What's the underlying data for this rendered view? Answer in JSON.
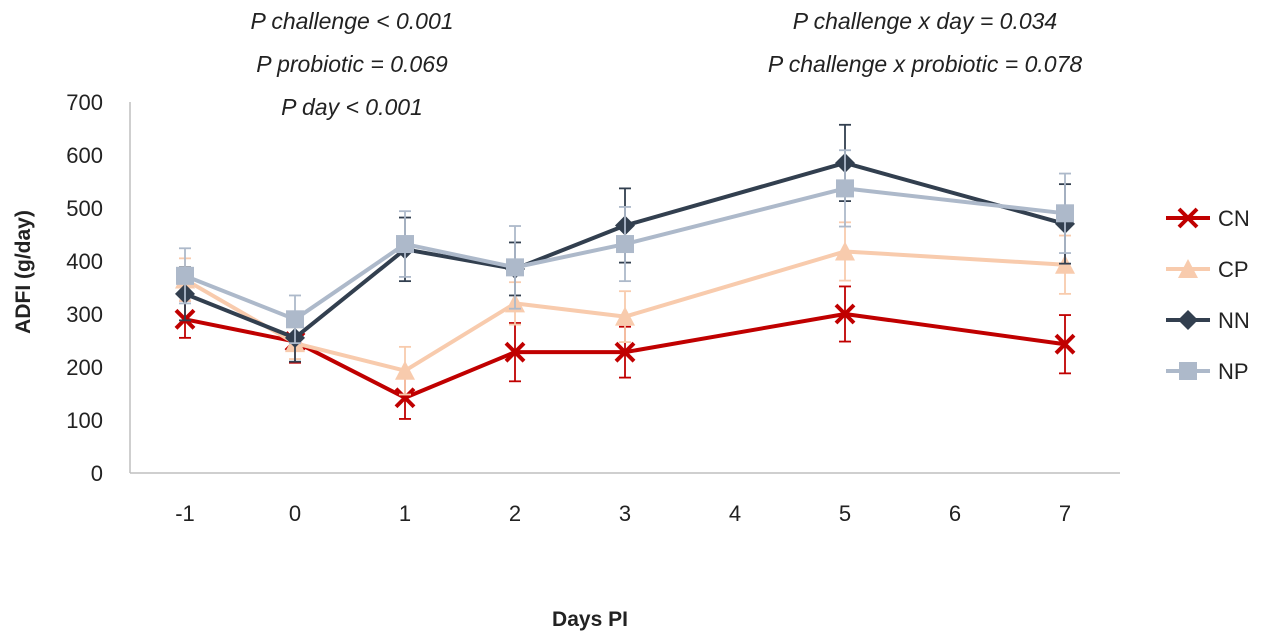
{
  "chart_data": {
    "type": "line",
    "title": "",
    "xlabel": "Days PI",
    "ylabel": "ADFI (g/day)",
    "ylim": [
      0,
      700
    ],
    "yticks": [
      0,
      100,
      200,
      300,
      400,
      500,
      600,
      700
    ],
    "xlim": [
      -1,
      7
    ],
    "xticks": [
      -1,
      0,
      1,
      2,
      3,
      4,
      5,
      6,
      7
    ],
    "x": [
      -1,
      0,
      1,
      2,
      3,
      5,
      7
    ],
    "grid": false,
    "legend_position": "right",
    "annotations_left": [
      "P challenge < 0.001",
      "P probiotic = 0.069",
      "P day < 0.001"
    ],
    "annotations_right": [
      "P challenge x day = 0.034",
      "P challenge x probiotic = 0.078"
    ],
    "series": [
      {
        "name": "CN",
        "color": "#C00000",
        "marker": "x",
        "values": [
          290,
          248,
          142,
          228,
          228,
          300,
          243
        ],
        "errors": [
          35,
          40,
          40,
          55,
          48,
          52,
          55
        ]
      },
      {
        "name": "CP",
        "color": "#F8CBAD",
        "marker": "triangle",
        "values": [
          365,
          245,
          193,
          320,
          295,
          418,
          393
        ],
        "errors": [
          40,
          30,
          45,
          40,
          48,
          55,
          55
        ]
      },
      {
        "name": "NN",
        "color": "#323F4F",
        "marker": "diamond",
        "values": [
          338,
          255,
          422,
          385,
          467,
          585,
          470
        ],
        "errors": [
          50,
          45,
          60,
          50,
          70,
          72,
          75
        ]
      },
      {
        "name": "NP",
        "color": "#ADB9CA",
        "marker": "square",
        "values": [
          372,
          290,
          432,
          388,
          432,
          537,
          490
        ],
        "errors": [
          52,
          45,
          62,
          78,
          70,
          72,
          75
        ]
      }
    ]
  }
}
